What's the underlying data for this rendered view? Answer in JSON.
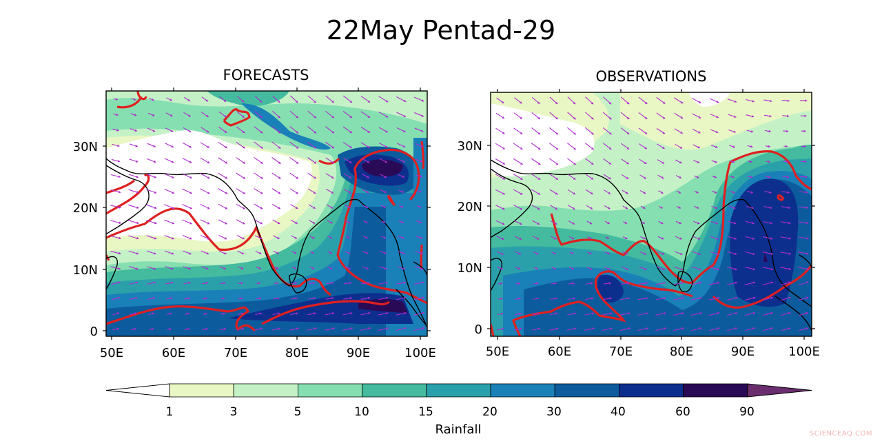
{
  "title": "22May Pentad-29",
  "panels": [
    {
      "title": "FORECASTS"
    },
    {
      "title": "OBSERVATIONS"
    }
  ],
  "axes": {
    "lon_labels": [
      "50E",
      "60E",
      "70E",
      "80E",
      "90E",
      "100E"
    ],
    "lat_labels": [
      "30N",
      "20N",
      "10N",
      "0"
    ]
  },
  "colorbar": {
    "label": "Rainfall",
    "ticks": [
      "1",
      "3",
      "5",
      "10",
      "15",
      "20",
      "30",
      "40",
      "60",
      "90"
    ],
    "colors": [
      "#ffffff",
      "#e8f7c3",
      "#c4f2c6",
      "#86dfb1",
      "#44bb9f",
      "#2aa1aa",
      "#1a80b8",
      "#0c5c9d",
      "#0c2f8e",
      "#290a57",
      "#6a2d6d"
    ],
    "extend": "both"
  },
  "overlays": {
    "contour_color": "#e01f1f",
    "vector_color": "#b02ccf",
    "coastline_color": "#000000"
  },
  "credit": "SCIENCEAQ.COM"
}
